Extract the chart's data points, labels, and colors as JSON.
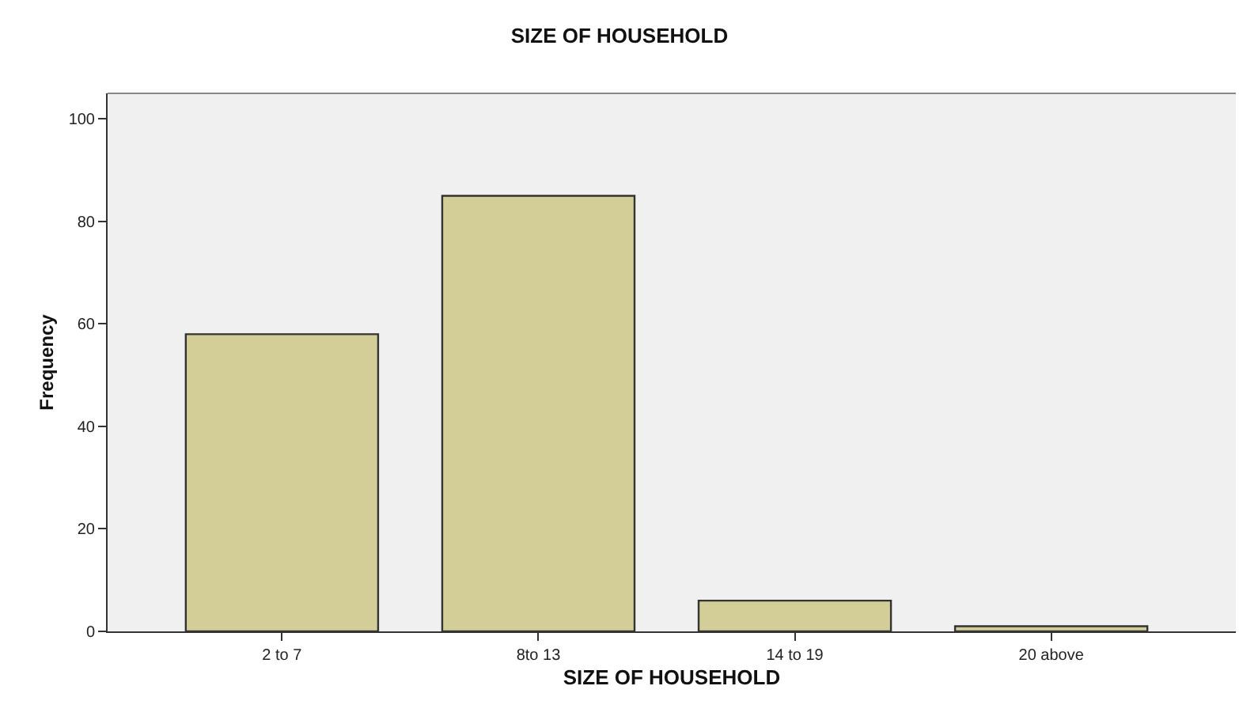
{
  "chart_data": {
    "type": "bar",
    "title": "SIZE OF HOUSEHOLD",
    "xlabel": "SIZE OF HOUSEHOLD",
    "ylabel": "Frequency",
    "categories": [
      "2 to 7",
      "8to 13",
      "14 to 19",
      "20 above"
    ],
    "values": [
      58,
      85,
      6,
      1
    ],
    "color": "#d3ce97",
    "ylim": [
      0,
      105
    ],
    "yticks": [
      0,
      20,
      40,
      60,
      80,
      100
    ],
    "grid": false
  }
}
